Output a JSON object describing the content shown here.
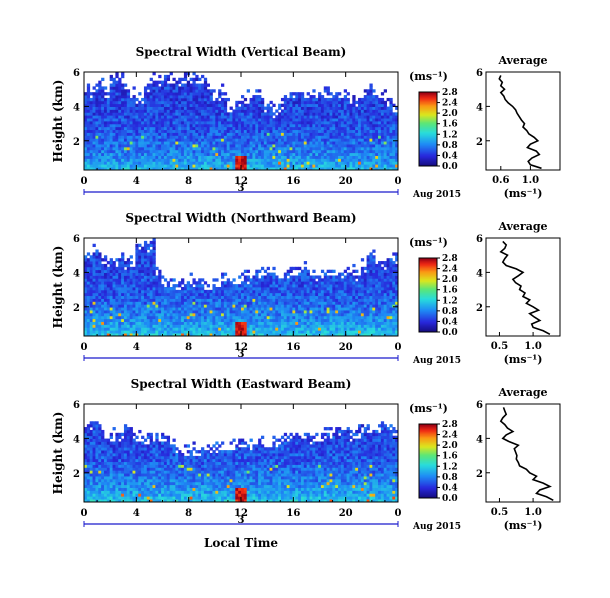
{
  "figure": {
    "common_xlabel": "Local Time",
    "date_label": "Aug 2015"
  },
  "chart_data": [
    {
      "type": "heatmap",
      "title": "Spectral Width (Vertical Beam)",
      "ylabel": "Height (km)",
      "xlim": [
        0,
        24
      ],
      "ylim": [
        0.3,
        6
      ],
      "xticks": [
        "0",
        "4",
        "8",
        "12",
        "16",
        "20",
        "0"
      ],
      "yticks": [
        "2",
        "4",
        "6"
      ],
      "day_marker": "3",
      "colorbar": {
        "unit": "(ms⁻¹)",
        "ticks": [
          "0.0",
          "0.4",
          "0.8",
          "1.2",
          "1.6",
          "2.0",
          "2.4",
          "2.8"
        ],
        "range": [
          0,
          2.8
        ]
      },
      "mean_level": 0.9,
      "echo_top_km": [
        5.0,
        5.4,
        5.5,
        5.0,
        5.8,
        5.8,
        5.3,
        4.9,
        4.6,
        5.4,
        5.7,
        5.6,
        5.9,
        5.8,
        5.6,
        5.8,
        5.9,
        5.8,
        5.7,
        5.5,
        4.9,
        5.0,
        4.2,
        4.3,
        4.5,
        4.7,
        4.8,
        4.8,
        4.2,
        3.9,
        4.2,
        4.6,
        5.0,
        5.1,
        4.9,
        4.8,
        4.9,
        5.0,
        4.9,
        4.8,
        4.8,
        4.5,
        4.5,
        4.8,
        5.2,
        5.0,
        4.8,
        4.5,
        4.0
      ],
      "profile": {
        "title": "Average",
        "xlabel": "(ms⁻¹)",
        "xticks": [
          "0.6",
          "1.0"
        ],
        "xlim": [
          0.4,
          1.4
        ],
        "ylim": [
          0.3,
          6
        ],
        "height_km": [
          0.4,
          0.6,
          0.8,
          1.0,
          1.2,
          1.4,
          1.6,
          1.8,
          2.0,
          2.2,
          2.4,
          2.6,
          2.8,
          3.0,
          3.2,
          3.4,
          3.6,
          3.8,
          4.0,
          4.2,
          4.4,
          4.6,
          4.8,
          5.0,
          5.2,
          5.4,
          5.6,
          5.8
        ],
        "width": [
          1.15,
          1.0,
          0.97,
          1.02,
          1.12,
          1.08,
          0.96,
          1.0,
          1.1,
          1.05,
          0.98,
          0.95,
          0.9,
          0.92,
          0.88,
          0.85,
          0.82,
          0.8,
          0.76,
          0.7,
          0.66,
          0.64,
          0.6,
          0.65,
          0.6,
          0.62,
          0.58,
          0.6
        ]
      }
    },
    {
      "type": "heatmap",
      "title": "Spectral Width (Northward Beam)",
      "ylabel": "Height (km)",
      "xlim": [
        0,
        24
      ],
      "ylim": [
        0.3,
        6
      ],
      "xticks": [
        "0",
        "4",
        "8",
        "12",
        "16",
        "20",
        "0"
      ],
      "yticks": [
        "2",
        "4",
        "6"
      ],
      "day_marker": "3",
      "colorbar": {
        "unit": "(ms⁻¹)",
        "ticks": [
          "0.0",
          "0.4",
          "0.8",
          "1.2",
          "1.6",
          "2.0",
          "2.4",
          "2.8"
        ],
        "range": [
          0,
          2.8
        ]
      },
      "mean_level": 0.95,
      "echo_top_km": [
        5.2,
        5.6,
        5.0,
        4.9,
        4.8,
        5.3,
        4.6,
        4.9,
        5.8,
        5.7,
        5.9,
        4.4,
        3.6,
        3.4,
        3.5,
        3.6,
        3.7,
        3.6,
        3.5,
        3.5,
        3.6,
        3.8,
        3.7,
        3.6,
        3.8,
        3.9,
        4.0,
        4.1,
        4.2,
        4.2,
        4.1,
        4.2,
        4.3,
        4.3,
        4.4,
        4.1,
        4.0,
        4.2,
        4.3,
        4.4,
        4.2,
        4.3,
        4.0,
        4.5,
        5.2,
        4.8,
        4.6,
        4.8,
        5.0
      ],
      "profile": {
        "title": "Average",
        "xlabel": "(ms⁻¹)",
        "xticks": [
          "0.5",
          "1.0"
        ],
        "xlim": [
          0.3,
          1.4
        ],
        "ylim": [
          0.3,
          6
        ],
        "height_km": [
          0.4,
          0.6,
          0.8,
          1.0,
          1.2,
          1.4,
          1.6,
          1.8,
          2.0,
          2.2,
          2.4,
          2.6,
          2.8,
          3.0,
          3.2,
          3.4,
          3.6,
          3.8,
          4.0,
          4.2,
          4.4,
          4.6,
          4.8,
          5.0,
          5.2,
          5.4,
          5.6,
          5.8
        ],
        "width": [
          1.25,
          1.15,
          1.0,
          0.98,
          1.1,
          1.02,
          0.95,
          1.08,
          1.0,
          0.9,
          0.95,
          0.85,
          0.88,
          0.8,
          0.82,
          0.74,
          0.7,
          0.78,
          0.85,
          0.75,
          0.6,
          0.55,
          0.58,
          0.62,
          0.52,
          0.58,
          0.6,
          0.55
        ]
      }
    },
    {
      "type": "heatmap",
      "title": "Spectral Width (Eastward Beam)",
      "ylabel": "Height (km)",
      "xlim": [
        0,
        24
      ],
      "ylim": [
        0.3,
        6
      ],
      "xticks": [
        "0",
        "4",
        "8",
        "12",
        "16",
        "20",
        "0"
      ],
      "yticks": [
        "2",
        "4",
        "6"
      ],
      "day_marker": "3",
      "colorbar": {
        "unit": "(ms⁻¹)",
        "ticks": [
          "0.0",
          "0.4",
          "0.8",
          "1.2",
          "1.6",
          "2.0",
          "2.4",
          "2.8"
        ],
        "range": [
          0,
          2.8
        ]
      },
      "mean_level": 0.95,
      "echo_top_km": [
        4.9,
        5.1,
        4.8,
        4.2,
        4.4,
        4.3,
        4.7,
        4.5,
        4.3,
        4.1,
        4.2,
        4.4,
        4.3,
        4.0,
        3.6,
        3.5,
        3.5,
        3.4,
        3.4,
        3.3,
        3.6,
        3.7,
        3.6,
        3.8,
        3.9,
        3.9,
        3.8,
        3.9,
        3.8,
        4.0,
        4.1,
        4.2,
        4.3,
        4.3,
        4.4,
        4.2,
        4.3,
        4.5,
        4.4,
        4.6,
        4.7,
        4.4,
        4.5,
        4.6,
        4.8,
        4.9,
        5.0,
        4.7,
        4.5
      ],
      "profile": {
        "title": "Average",
        "xlabel": "(ms⁻¹)",
        "xticks": [
          "0.5",
          "1.0"
        ],
        "xlim": [
          0.3,
          1.4
        ],
        "ylim": [
          0.3,
          6
        ],
        "height_km": [
          0.4,
          0.6,
          0.8,
          1.0,
          1.2,
          1.4,
          1.6,
          1.8,
          2.0,
          2.2,
          2.4,
          2.6,
          2.8,
          3.0,
          3.2,
          3.4,
          3.6,
          3.8,
          4.0,
          4.2,
          4.4,
          4.6,
          4.8,
          5.0,
          5.2,
          5.4,
          5.6,
          5.8
        ],
        "width": [
          1.3,
          1.2,
          1.05,
          1.1,
          1.25,
          1.15,
          1.0,
          1.05,
          0.95,
          0.9,
          0.8,
          0.78,
          0.75,
          0.76,
          0.74,
          0.72,
          0.78,
          0.65,
          0.55,
          0.6,
          0.7,
          0.62,
          0.58,
          0.52,
          0.55,
          0.6,
          0.58,
          0.56
        ]
      }
    }
  ]
}
